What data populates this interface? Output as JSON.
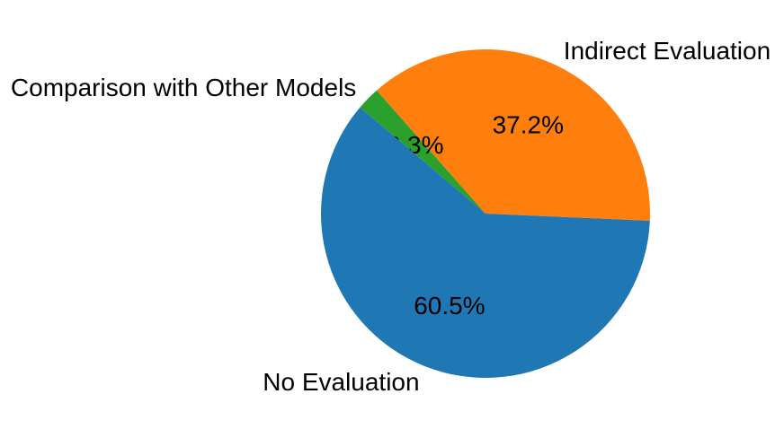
{
  "chart_data": {
    "type": "pie",
    "title": "",
    "legend": "none",
    "background_color": "#ffffff",
    "text_color": "#000000",
    "direction": "counterclockwise",
    "start_angle_deg": -2.5,
    "pct_distance": 0.6,
    "label_distance": 1.1,
    "slices": [
      {
        "label": "Indirect Evaluation",
        "value": 37.2,
        "pct_label": "37.2%",
        "color": "#ff7f0e"
      },
      {
        "label": "Comparison with Other Models",
        "value": 2.3,
        "pct_label": "2.3%",
        "color": "#2ca02c"
      },
      {
        "label": "No Evaluation",
        "value": 60.5,
        "pct_label": "60.5%",
        "color": "#1f77b4"
      }
    ]
  }
}
